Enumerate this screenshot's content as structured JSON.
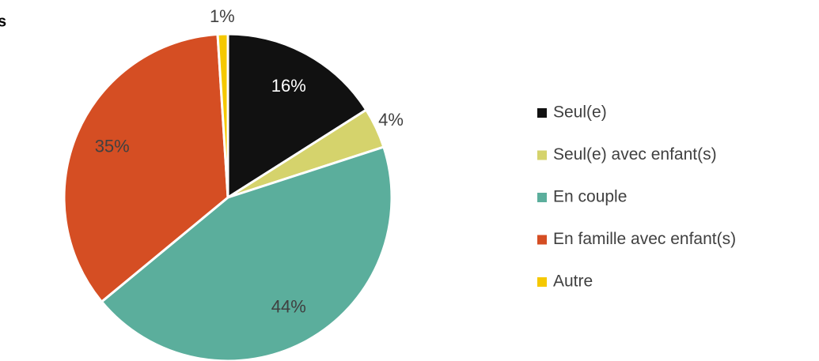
{
  "chart_data": {
    "type": "pie",
    "title": "s",
    "categories": [
      "Seul(e)",
      "Seul(e) avec enfant(s)",
      "En couple",
      "En famille avec enfant(s)",
      "Autre"
    ],
    "values": [
      16,
      4,
      44,
      35,
      1
    ],
    "value_labels": [
      "16%",
      "4%",
      "44%",
      "35%",
      "1%"
    ],
    "colors": [
      "#111111",
      "#d5d36c",
      "#5bae9c",
      "#d54e23",
      "#f5c800"
    ],
    "legend": "right"
  }
}
